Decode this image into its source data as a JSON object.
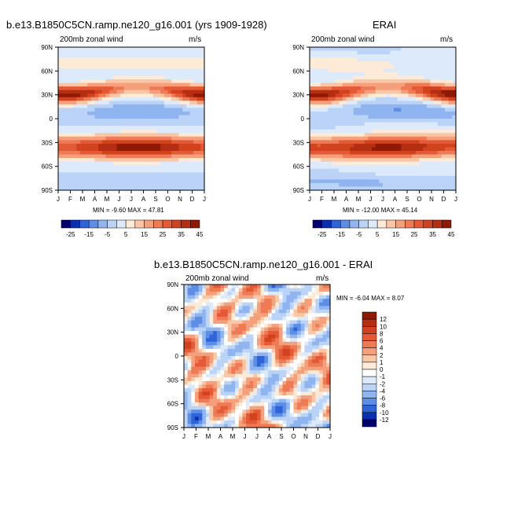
{
  "chart_data": [
    {
      "type": "heatmap",
      "title": "b.e13.B1850C5CN.ramp.ne120_g16.001 (yrs 1909-1928)",
      "subtitle_left": "200mb zonal wind",
      "subtitle_right": "m/s",
      "x_ticks": [
        "J",
        "F",
        "M",
        "A",
        "M",
        "J",
        "J",
        "A",
        "S",
        "O",
        "N",
        "D",
        "J"
      ],
      "y_ticks": [
        "90N",
        "60N",
        "30N",
        "0",
        "30S",
        "60S",
        "90S"
      ],
      "minmax_text": "MIN = -9.60 MAX = 47.81",
      "colorbar_levels": [
        "-25",
        "-15",
        "-5",
        "5",
        "15",
        "25",
        "35",
        "45"
      ]
    },
    {
      "type": "heatmap",
      "title": "ERAI",
      "subtitle_left": "200mb zonal wind",
      "subtitle_right": "m/s",
      "x_ticks": [
        "J",
        "F",
        "M",
        "A",
        "M",
        "J",
        "J",
        "A",
        "S",
        "O",
        "N",
        "D",
        "J"
      ],
      "y_ticks": [
        "90N",
        "60N",
        "30N",
        "0",
        "30S",
        "60S",
        "90S"
      ],
      "minmax_text": "MIN = -12.00 MAX = 45.14",
      "colorbar_levels": [
        "-25",
        "-15",
        "-5",
        "5",
        "15",
        "25",
        "35",
        "45"
      ]
    },
    {
      "type": "heatmap",
      "title": "b.e13.B1850C5CN.ramp.ne120_g16.001 - ERAI",
      "subtitle_left": "200mb zonal wind",
      "subtitle_right": "m/s",
      "x_ticks": [
        "J",
        "F",
        "M",
        "A",
        "M",
        "J",
        "J",
        "A",
        "S",
        "O",
        "N",
        "D",
        "J"
      ],
      "y_ticks": [
        "90N",
        "60N",
        "30N",
        "0",
        "30S",
        "60S",
        "90S"
      ],
      "minmax_text": "MIN = -6.04 MAX = 8.07",
      "colorbar_levels": [
        "12",
        "10",
        "8",
        "6",
        "4",
        "2",
        "1",
        "0",
        "-1",
        "-2",
        "-4",
        "-6",
        "-8",
        "-10",
        "-12"
      ]
    }
  ],
  "colors": {
    "main_scale": [
      "#03006b",
      "#0a2fb0",
      "#2f63d8",
      "#5d8ee6",
      "#8fb4f0",
      "#bad3f6",
      "#ddeafb",
      "#fdebd8",
      "#f9c7a6",
      "#f4a07c",
      "#ee7a56",
      "#e45a36",
      "#d2421f",
      "#b52e12",
      "#8e1a06"
    ],
    "diff_scale": [
      "#8e1a06",
      "#b52e12",
      "#d2421f",
      "#e45a36",
      "#ee7a56",
      "#f4a07c",
      "#f9c7a6",
      "#fdebd8",
      "#ffffff",
      "#ddeafb",
      "#bad3f6",
      "#8fb4f0",
      "#5d8ee6",
      "#2f63d8",
      "#0a2fb0",
      "#03006b"
    ]
  }
}
